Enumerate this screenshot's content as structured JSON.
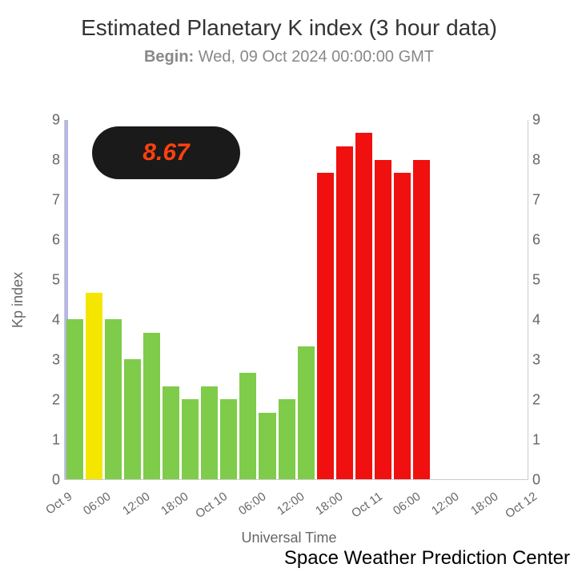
{
  "title": "Estimated Planetary K index (3 hour data)",
  "subtitle_label": "Begin:",
  "subtitle_value": " Wed, 09 Oct 2024 00:00:00 GMT",
  "y_label": "Kp index",
  "x_label": "Universal Time",
  "footer": "Space Weather Prediction Center",
  "callout_value": "8.67",
  "chart": {
    "type": "bar",
    "ylim": [
      0,
      9
    ],
    "yticks": [
      0,
      1,
      2,
      3,
      4,
      5,
      6,
      7,
      8,
      9
    ],
    "xticks": [
      "Oct 9",
      "06:00",
      "12:00",
      "18:00",
      "Oct 10",
      "06:00",
      "12:00",
      "18:00",
      "Oct 11",
      "06:00",
      "12:00",
      "18:00",
      "Oct 12"
    ],
    "bar_gap": 3,
    "background_color": "#ffffff",
    "axis_color": "#cccccc",
    "text_color": "#666666",
    "bars": [
      {
        "value": 4.0,
        "color": "#7ecc49"
      },
      {
        "value": 4.67,
        "color": "#f5e600"
      },
      {
        "value": 4.0,
        "color": "#7ecc49"
      },
      {
        "value": 3.0,
        "color": "#7ecc49"
      },
      {
        "value": 3.67,
        "color": "#7ecc49"
      },
      {
        "value": 2.33,
        "color": "#7ecc49"
      },
      {
        "value": 2.0,
        "color": "#7ecc49"
      },
      {
        "value": 2.33,
        "color": "#7ecc49"
      },
      {
        "value": 2.0,
        "color": "#7ecc49"
      },
      {
        "value": 2.67,
        "color": "#7ecc49"
      },
      {
        "value": 1.67,
        "color": "#7ecc49"
      },
      {
        "value": 2.0,
        "color": "#7ecc49"
      },
      {
        "value": 3.33,
        "color": "#7ecc49"
      },
      {
        "value": 7.67,
        "color": "#f01010"
      },
      {
        "value": 8.33,
        "color": "#f01010"
      },
      {
        "value": 8.67,
        "color": "#f01010"
      },
      {
        "value": 8.0,
        "color": "#f01010"
      },
      {
        "value": 7.67,
        "color": "#f01010"
      },
      {
        "value": 8.0,
        "color": "#f01010"
      },
      {
        "value": 0,
        "color": "transparent"
      },
      {
        "value": 0,
        "color": "transparent"
      },
      {
        "value": 0,
        "color": "transparent"
      },
      {
        "value": 0,
        "color": "transparent"
      },
      {
        "value": 0,
        "color": "transparent"
      }
    ],
    "callout": {
      "bg": "#1a1a1a",
      "text_color": "#ff4010",
      "fontsize": 30,
      "target_bar_index": 15
    }
  }
}
